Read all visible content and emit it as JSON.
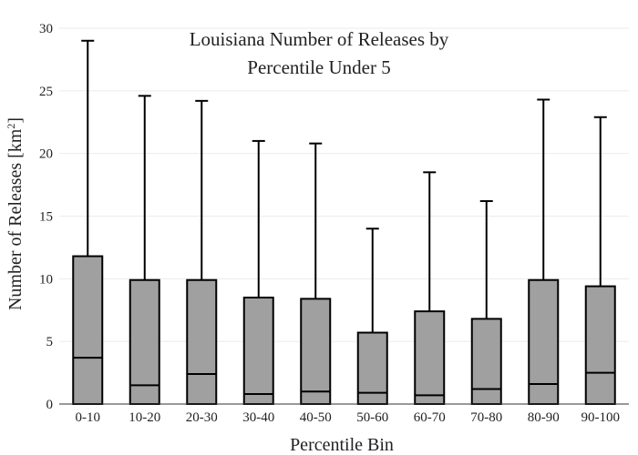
{
  "chart_data": {
    "type": "boxplot",
    "title_lines": [
      "Louisiana Number of Releases by",
      "Percentile Under 5"
    ],
    "xlabel": "Percentile Bin",
    "ylabel": "Number of Releases",
    "ylabel_unit_base": "[km",
    "ylabel_unit_sup": "2",
    "ylabel_unit_end": "]",
    "ylim": [
      0,
      30
    ],
    "yticks": [
      0,
      5,
      10,
      15,
      20,
      25,
      30
    ],
    "grid": true,
    "colors": {
      "box_fill": "#a0a0a0",
      "stroke": "#000000",
      "grid": "#ebebeb",
      "axis": "#333333"
    },
    "categories": [
      "0-10",
      "10-20",
      "20-30",
      "30-40",
      "40-50",
      "50-60",
      "60-70",
      "70-80",
      "80-90",
      "90-100"
    ],
    "boxes": [
      {
        "min": 0,
        "q1": 0,
        "median": 3.7,
        "q3": 11.8,
        "max": 29.0
      },
      {
        "min": 0,
        "q1": 0,
        "median": 1.5,
        "q3": 9.9,
        "max": 24.6
      },
      {
        "min": 0,
        "q1": 0,
        "median": 2.4,
        "q3": 9.9,
        "max": 24.2
      },
      {
        "min": 0,
        "q1": 0,
        "median": 0.8,
        "q3": 8.5,
        "max": 21.0
      },
      {
        "min": 0,
        "q1": 0,
        "median": 1.0,
        "q3": 8.4,
        "max": 20.8
      },
      {
        "min": 0,
        "q1": 0,
        "median": 0.9,
        "q3": 5.7,
        "max": 14.0
      },
      {
        "min": 0,
        "q1": 0,
        "median": 0.7,
        "q3": 7.4,
        "max": 18.5
      },
      {
        "min": 0,
        "q1": 0,
        "median": 1.2,
        "q3": 6.8,
        "max": 16.2
      },
      {
        "min": 0,
        "q1": 0,
        "median": 1.6,
        "q3": 9.9,
        "max": 24.3
      },
      {
        "min": 0,
        "q1": 0,
        "median": 2.5,
        "q3": 9.4,
        "max": 22.9
      }
    ]
  }
}
